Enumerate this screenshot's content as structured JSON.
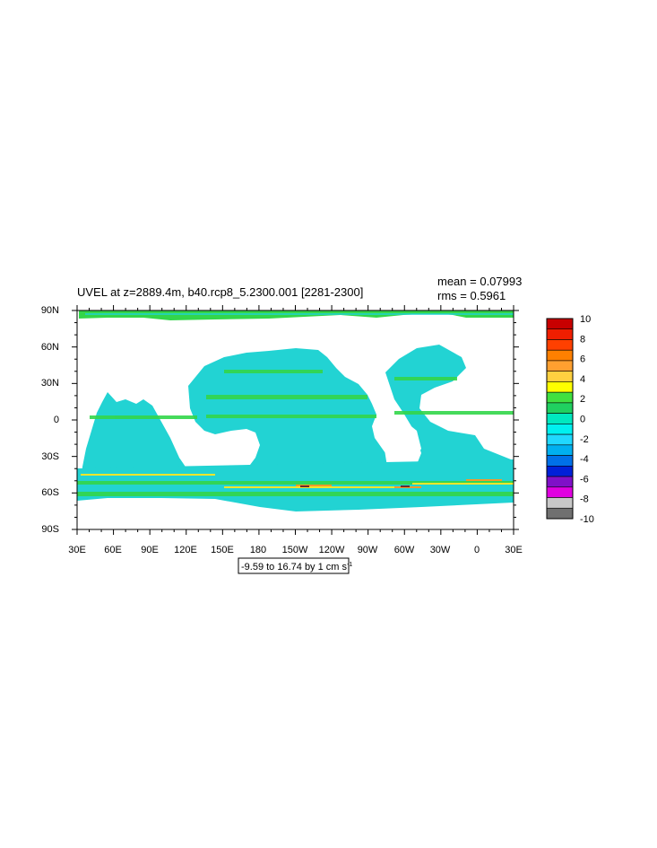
{
  "map": {
    "title": "UVEL at z=2889.4m, b40.rcp8_5.2300.001 [2281-2300]",
    "mean_label": "mean = 0.07993",
    "rms_label": "rms = 0.5961",
    "range_label_prefix": "-9.59 to 16.74 by 1 cm s",
    "range_label_exponent": "-1",
    "lat_ticks": [
      "90N",
      "60N",
      "30N",
      "0",
      "30S",
      "60S",
      "90S"
    ],
    "lon_ticks": [
      "30E",
      "60E",
      "90E",
      "120E",
      "150E",
      "180",
      "150W",
      "120W",
      "90W",
      "60W",
      "30W",
      "0",
      "30E"
    ],
    "projection": "cylindrical equidistant",
    "lon_range": [
      30,
      390
    ],
    "lat_range": [
      -90,
      90
    ]
  },
  "colorbar": {
    "labels": [
      "10",
      "8",
      "6",
      "4",
      "2",
      "0",
      "-2",
      "-4",
      "-6",
      "-8",
      "-10"
    ],
    "colors": [
      "#c80000",
      "#f01e00",
      "#ff4000",
      "#ff8000",
      "#ffa030",
      "#ffd040",
      "#ffff00",
      "#40e040",
      "#20d060",
      "#00e8c0",
      "#00f0f0",
      "#20d8ff",
      "#00b0f0",
      "#0070e8",
      "#0020d8",
      "#8010c8",
      "#e000e0",
      "#c8c8c8",
      "#707070"
    ]
  },
  "colors": {
    "ocean_low": "#22d3d3",
    "ocean_mid": "#35dfa0",
    "ocean_pos": "#33d64a",
    "ocean_high": "#f3e62a",
    "ocean_strong": "#f39a2a",
    "land": "#ffffff",
    "frame": "#000000"
  }
}
